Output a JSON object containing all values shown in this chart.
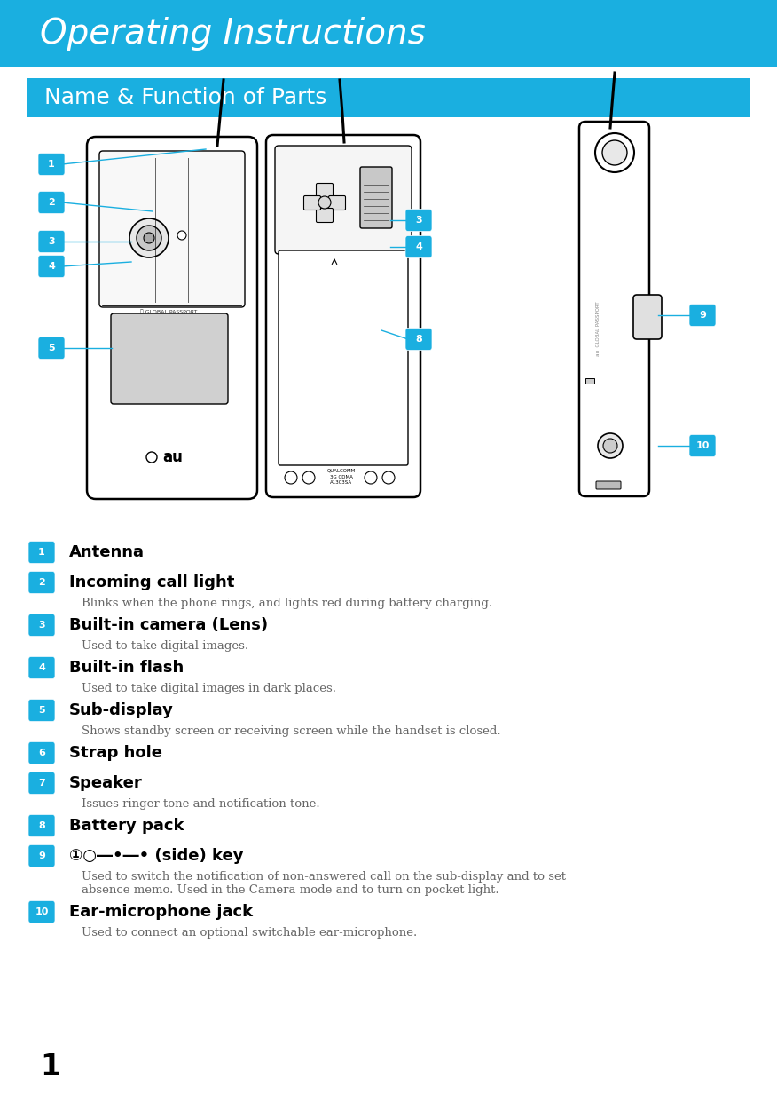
{
  "title": "Operating Instructions",
  "title_bg_color": "#1aafe0",
  "title_text_color": "#ffffff",
  "section_title": "Name & Function of Parts",
  "section_bg_color": "#1aafe0",
  "section_text_color": "#ffffff",
  "page_bg_color": "#ffffff",
  "icon_color": "#1aafe0",
  "page_number": "1",
  "items": [
    {
      "num": "1",
      "title": "Antenna",
      "desc": ""
    },
    {
      "num": "2",
      "title": "Incoming call light",
      "desc": "Blinks when the phone rings, and lights red during battery charging."
    },
    {
      "num": "3",
      "title": "Built-in camera (Lens)",
      "desc": "Used to take digital images."
    },
    {
      "num": "4",
      "title": "Built-in flash",
      "desc": "Used to take digital images in dark places."
    },
    {
      "num": "5",
      "title": "Sub-display",
      "desc": "Shows standby screen or receiving screen while the handset is closed."
    },
    {
      "num": "6",
      "title": "Strap hole",
      "desc": ""
    },
    {
      "num": "7",
      "title": "Speaker",
      "desc": "Issues ringer tone and notification tone."
    },
    {
      "num": "8",
      "title": "Battery pack",
      "desc": ""
    },
    {
      "num": "9",
      "title": "①○―•―• (side) key",
      "desc": "Used to switch the notification of non-answered call on the sub-display and to set\nabsence memo. Used in the Camera mode and to turn on pocket light."
    },
    {
      "num": "10",
      "title": "Ear-microphone jack",
      "desc": "Used to connect an optional switchable ear-microphone."
    }
  ]
}
